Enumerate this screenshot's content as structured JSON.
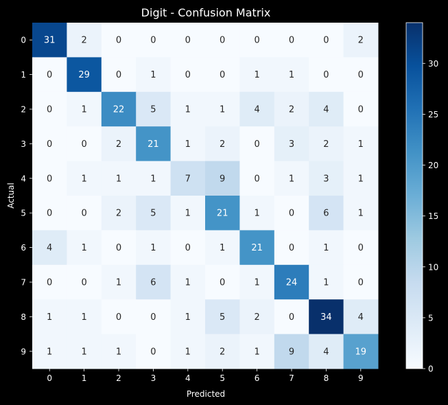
{
  "chart_data": {
    "type": "heatmap",
    "title": "Digit - Confusion Matrix",
    "xlabel": "Predicted",
    "ylabel": "Actual",
    "x_categories": [
      "0",
      "1",
      "2",
      "3",
      "4",
      "5",
      "6",
      "7",
      "8",
      "9"
    ],
    "y_categories": [
      "0",
      "1",
      "2",
      "3",
      "4",
      "5",
      "6",
      "7",
      "8",
      "9"
    ],
    "matrix": [
      [
        31,
        2,
        0,
        0,
        0,
        0,
        0,
        0,
        0,
        2
      ],
      [
        0,
        29,
        0,
        1,
        0,
        0,
        1,
        1,
        0,
        0
      ],
      [
        0,
        1,
        22,
        5,
        1,
        1,
        4,
        2,
        4,
        0
      ],
      [
        0,
        0,
        2,
        21,
        1,
        2,
        0,
        3,
        2,
        1
      ],
      [
        0,
        1,
        1,
        1,
        7,
        9,
        0,
        1,
        3,
        1
      ],
      [
        0,
        0,
        2,
        5,
        1,
        21,
        1,
        0,
        6,
        1
      ],
      [
        4,
        1,
        0,
        1,
        0,
        1,
        21,
        0,
        1,
        0
      ],
      [
        0,
        0,
        1,
        6,
        1,
        0,
        1,
        24,
        1,
        0
      ],
      [
        1,
        1,
        0,
        0,
        1,
        5,
        2,
        0,
        34,
        4
      ],
      [
        1,
        1,
        1,
        0,
        1,
        2,
        1,
        9,
        4,
        19
      ]
    ],
    "colormap": "Blues",
    "colorbar": {
      "vmin": 0,
      "vmax": 34,
      "ticks": [
        0,
        5,
        10,
        15,
        20,
        25,
        30
      ]
    },
    "colors": {
      "background": "#000000",
      "low": "#f7fbff",
      "high": "#08306b"
    },
    "grid": false
  }
}
